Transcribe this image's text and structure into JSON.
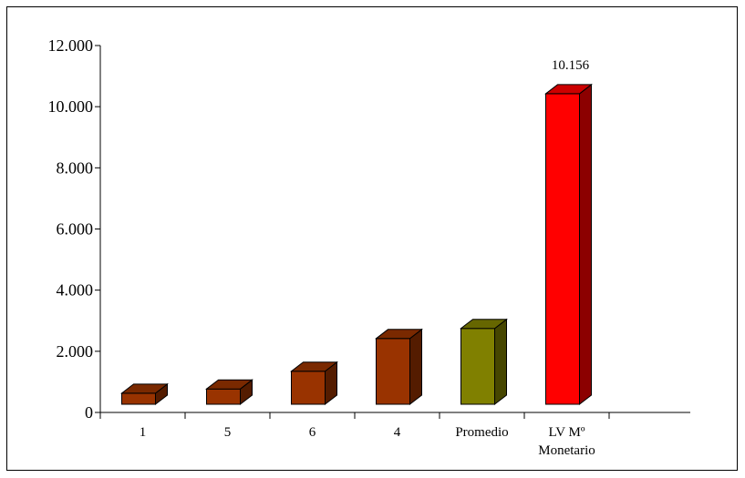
{
  "chart_data": {
    "type": "bar",
    "categories": [
      [
        "1"
      ],
      [
        "5"
      ],
      [
        "6"
      ],
      [
        "4"
      ],
      [
        "Promedio"
      ],
      [
        "LV Mº",
        "Monetario"
      ]
    ],
    "values": [
      360,
      500,
      1080,
      2150,
      2480,
      10156
    ],
    "colors": [
      "#993300",
      "#993300",
      "#993300",
      "#993300",
      "#808000",
      "#ff0000"
    ],
    "data_labels": [
      "",
      "",
      "",
      "",
      "",
      "10.156"
    ],
    "ylim": [
      0,
      12000
    ],
    "yticks": [
      0,
      2000,
      4000,
      6000,
      8000,
      10000,
      12000
    ],
    "ytick_labels": [
      "0",
      "2.000",
      "4.000",
      "6.000",
      "8.000",
      "10.000",
      "12.000"
    ],
    "grid": false,
    "legend": false,
    "three_d": true
  }
}
